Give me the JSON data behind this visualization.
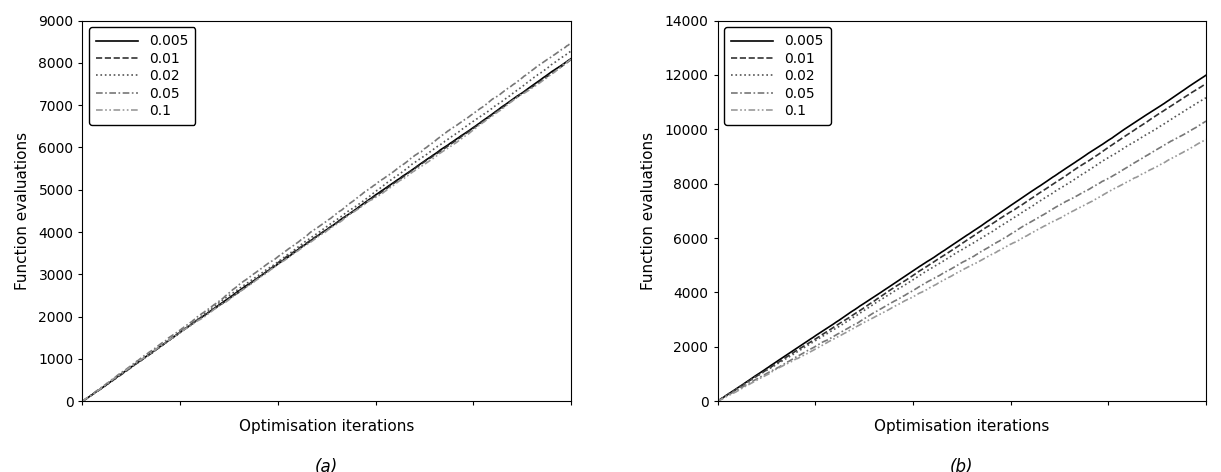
{
  "legend_labels": [
    "0.005",
    "0.01",
    "0.02",
    "0.05",
    "0.1"
  ],
  "n_points": 1000,
  "subplot_a": {
    "title": "(a)",
    "xlabel": "Optimisation iterations",
    "ylabel": "Function evaluations",
    "ylim": [
      0,
      9000
    ],
    "xlim": [
      0,
      1000
    ],
    "yticks": [
      0,
      1000,
      2000,
      3000,
      4000,
      5000,
      6000,
      7000,
      8000,
      9000
    ],
    "slopes": [
      8.05,
      8.15,
      8.25,
      8.35,
      8.0
    ],
    "noise_seeds": [
      1,
      2,
      3,
      4,
      5
    ],
    "noise_amp": [
      40,
      50,
      60,
      70,
      80
    ]
  },
  "subplot_b": {
    "title": "(b)",
    "xlabel": "Optimisation iterations",
    "ylabel": "Function evaluations",
    "ylim": [
      0,
      14000
    ],
    "xlim": [
      0,
      1000
    ],
    "yticks": [
      0,
      2000,
      4000,
      6000,
      8000,
      10000,
      12000,
      14000
    ],
    "slopes": [
      12.0,
      11.7,
      11.2,
      10.5,
      9.7
    ],
    "noise_seeds": [
      11,
      12,
      13,
      14,
      15
    ],
    "noise_amp": [
      40,
      50,
      60,
      70,
      80
    ]
  },
  "background_color": "#ffffff",
  "spine_color": "#000000"
}
